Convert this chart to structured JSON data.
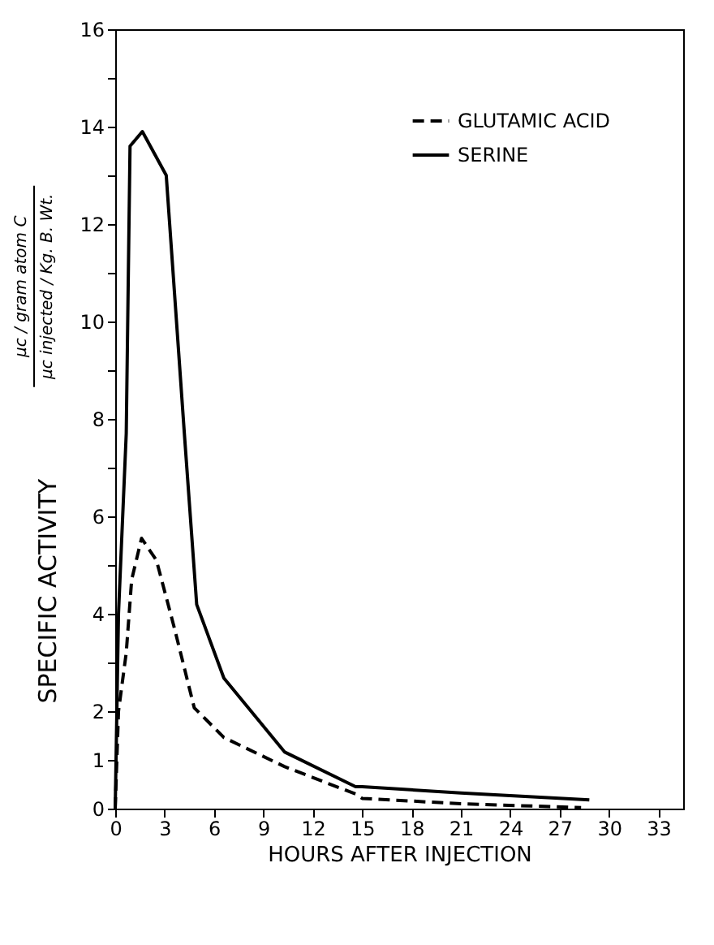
{
  "chart_data": {
    "type": "line",
    "xlabel": "HOURS AFTER INJECTION",
    "ylabel": "SPECIFIC ACTIVITY",
    "annotations": [
      "μc / gram atom C",
      "μc injected / Kg. B. Wt."
    ],
    "xlim": [
      0,
      34.5
    ],
    "xticks": [
      0,
      3,
      6,
      9,
      12,
      15,
      18,
      21,
      24,
      27,
      30,
      33
    ],
    "ylim": [
      0,
      16
    ],
    "yticks": [
      0,
      1,
      2,
      {
        "value": 3,
        "label": null
      },
      4,
      {
        "value": 5,
        "label": null
      },
      6,
      {
        "value": 7,
        "label": null
      },
      8,
      {
        "value": 9,
        "label": null
      },
      10,
      {
        "value": 11,
        "label": null
      },
      12,
      {
        "value": 13,
        "label": null
      },
      14,
      {
        "value": 15,
        "label": null
      },
      16
    ],
    "grid": false,
    "legend": "top right",
    "marker": "none",
    "series": [
      {
        "name": "GLUTAMIC ACID",
        "color": "#000000",
        "line_style": "dashed",
        "x": [
          0,
          0.2,
          0.67,
          1.0,
          1.6,
          2.5,
          3.6,
          4.8,
          6.6,
          10.3,
          14.6,
          15,
          21,
          28.3
        ],
        "values": [
          0,
          2.0,
          3.2,
          4.7,
          5.55,
          5.1,
          3.7,
          2.07,
          1.46,
          0.86,
          0.3,
          0.21,
          0.1,
          0.02
        ]
      },
      {
        "name": "SERINE",
        "color": "#000000",
        "line_style": "solid",
        "x": [
          0,
          0.2,
          0.67,
          0.9,
          1.65,
          3.1,
          4.2,
          4.95,
          6.6,
          10.3,
          14.6,
          15,
          21,
          28.8
        ],
        "values": [
          0,
          4.0,
          7.7,
          13.6,
          13.9,
          13.0,
          7.7,
          4.19,
          2.68,
          1.16,
          0.45,
          0.45,
          0.32,
          0.18
        ]
      }
    ]
  }
}
